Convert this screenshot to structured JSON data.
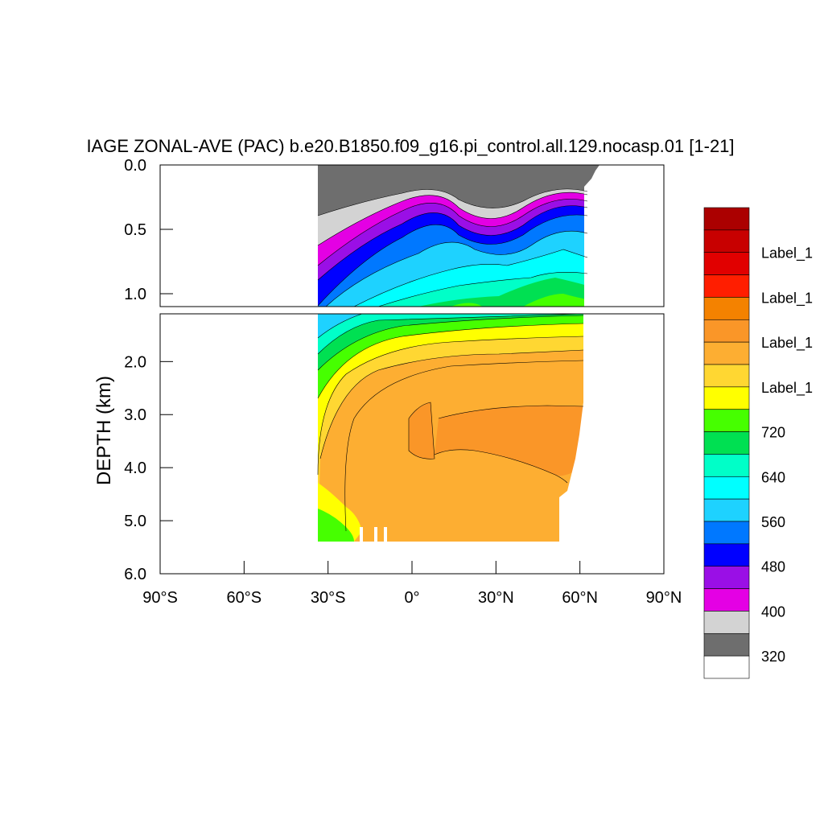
{
  "chart_data": {
    "type": "heatmap",
    "title": "IAGE ZONAL-AVE (PAC) b.e20.B1850.f09_g16.pi_control.all.129.nocasp.01 [1-21]",
    "ylabel": "DEPTH (km)",
    "x_ticks": [
      "90°S",
      "60°S",
      "30°S",
      "0°",
      "30°N",
      "60°N",
      "90°N"
    ],
    "xlim": [
      -90,
      90
    ],
    "ylim_top_panel": [
      0.0,
      1.1
    ],
    "ylim_bottom_panel": [
      1.1,
      6.0
    ],
    "y_ticks_top": [
      "0.0",
      "0.5",
      "1.0"
    ],
    "y_ticks_bottom": [
      "2.0",
      "3.0",
      "4.0",
      "5.0",
      "6.0"
    ],
    "colorbar": {
      "colors": [
        "#ab0000",
        "#c80000",
        "#e10000",
        "#ff1e00",
        "#f48200",
        "#fa9628",
        "#fdae32",
        "#ffd732",
        "#ffff00",
        "#46ff00",
        "#00e052",
        "#00ffc8",
        "#00ffff",
        "#1ed2ff",
        "#0078ff",
        "#0000ff",
        "#9a0fe6",
        "#e400e4",
        "#d3d3d3",
        "#6e6e6e",
        "#ffffff"
      ],
      "labels": [
        "Label_1",
        "Label_1",
        "Label_1",
        "Label_1",
        "720",
        "640",
        "560",
        "480",
        "400",
        "320"
      ]
    },
    "shown_values": {
      "region_lat_range": [
        -34,
        62
      ],
      "deep_core_age_band_note": ""
    }
  }
}
